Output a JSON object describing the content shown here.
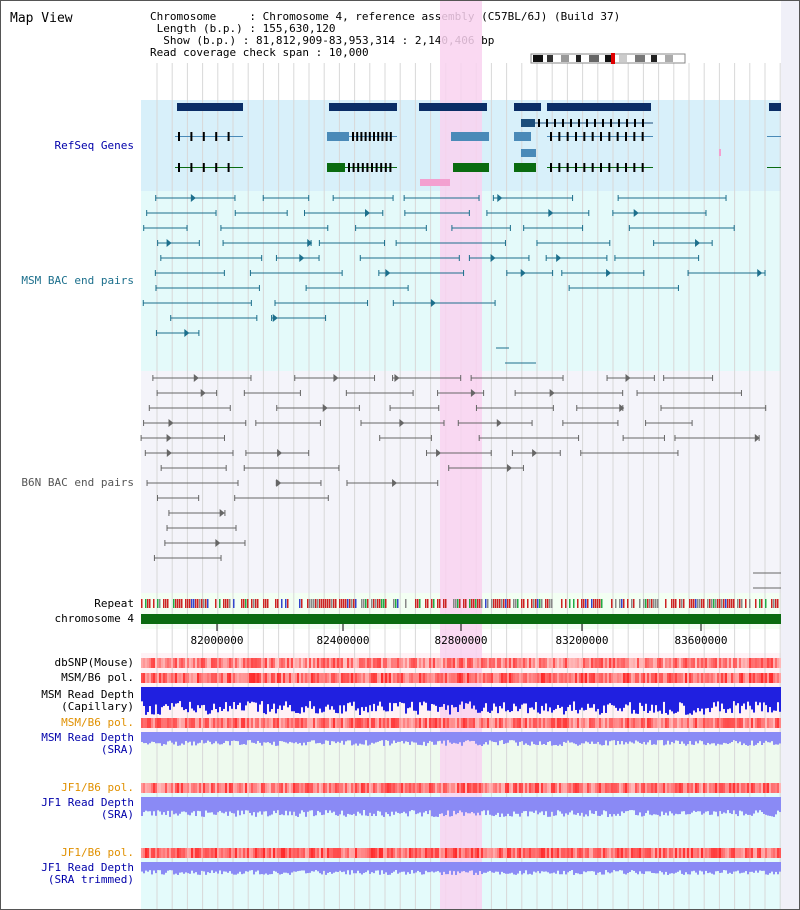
{
  "title": "Map View",
  "info": {
    "chromosome_key": "Chromosome",
    "chromosome_val": "Chromosome 4, reference assembly (C57BL/6J) (Build 37)",
    "length_key": "Length (b.p.)",
    "length_val": "155,630,120",
    "show_key": "Show (b.p.)",
    "show_val": "81,812,909-83,953,314 : 2,140,406 bp",
    "coverage_key": "Read coverage check span",
    "coverage_val": "10,000"
  },
  "tracks": {
    "refseq": "RefSeq Genes",
    "msm_bac": "MSM BAC end pairs",
    "b6n_bac": "B6N BAC end pairs",
    "repeat": "Repeat",
    "chromosome": "chromosome 4",
    "dbsnp": "dbSNP(Mouse)",
    "msm_b6_pol": "MSM/B6 pol.",
    "msm_depth_cap_1": "MSM Read Depth",
    "msm_depth_cap_2": "(Capillary)",
    "msm_b6_pol2": "MSM/B6 pol.",
    "msm_depth_sra_1": "MSM Read Depth",
    "msm_depth_sra_2": "(SRA)",
    "jf1_b6_pol": "JF1/B6 pol.",
    "jf1_depth_sra_1": "JF1 Read Depth",
    "jf1_depth_sra_2": "(SRA)",
    "jf1_b6_pol2": "JF1/B6 pol.",
    "jf1_depth_trim_1": "JF1 Read Depth",
    "jf1_depth_trim_2": "(SRA trimmed)"
  },
  "axis": {
    "ticks": [
      "82000000",
      "82400000",
      "82800000",
      "83200000",
      "83600000"
    ],
    "tick_values": [
      82000000,
      82400000,
      82800000,
      83200000,
      83600000
    ]
  },
  "colors": {
    "refseq_bg": "#d8f0fa",
    "msm_bg": "#e4fafa",
    "b6n_bg": "#f4f4fa",
    "highlight": "#f9d2f0",
    "gene_dark": "#0a2d66",
    "gene_mid": "#4a8ab8",
    "gene_green": "#0a6b10",
    "msm_line": "#1c6f8c",
    "b6n_line": "#666666",
    "chrom_green": "#0a6b10",
    "depth_blue": "#2020e0",
    "depth_light": "#8a8af5",
    "label_blue": "#0000aa",
    "label_teal": "#1c6f8c",
    "label_orange": "#e09000"
  }
}
